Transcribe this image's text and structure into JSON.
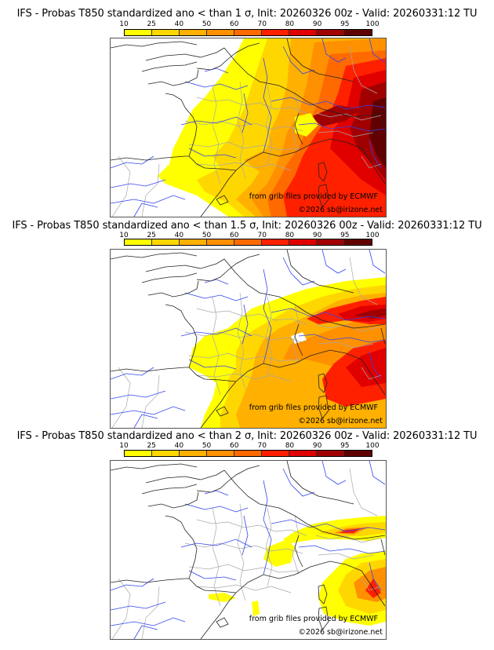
{
  "colorbar": {
    "ticks": [
      "10",
      "25",
      "40",
      "50",
      "60",
      "70",
      "80",
      "90",
      "95",
      "100"
    ],
    "colors": [
      "#ffff00",
      "#ffd700",
      "#ffb000",
      "#ff9000",
      "#ff6a00",
      "#ff2000",
      "#e00000",
      "#a00000",
      "#600000"
    ]
  },
  "panels": [
    {
      "title": "IFS - Probas T850  standardized ano < than 1 σ, Init: 20260326 00z - Valid: 20260331:12 TU",
      "credit_grib": "from grib files provided by ECMWF",
      "credit_copy": "©2026 sb@irizone.net",
      "threshold_sigma": 1
    },
    {
      "title": "IFS - Probas T850  standardized ano < than 1.5 σ, Init: 20260326 00z - Valid: 20260331:12 TU",
      "credit_grib": "from grib files provided by ECMWF",
      "credit_copy": "©2026 sb@irizone.net",
      "threshold_sigma": 1.5
    },
    {
      "title": "IFS - Probas T850  standardized ano < than 2 σ, Init: 20260326 00z - Valid: 20260331:12 TU",
      "credit_grib": "from grib files provided by ECMWF",
      "credit_copy": "©2026 sb@irizone.net",
      "threshold_sigma": 2
    }
  ]
}
